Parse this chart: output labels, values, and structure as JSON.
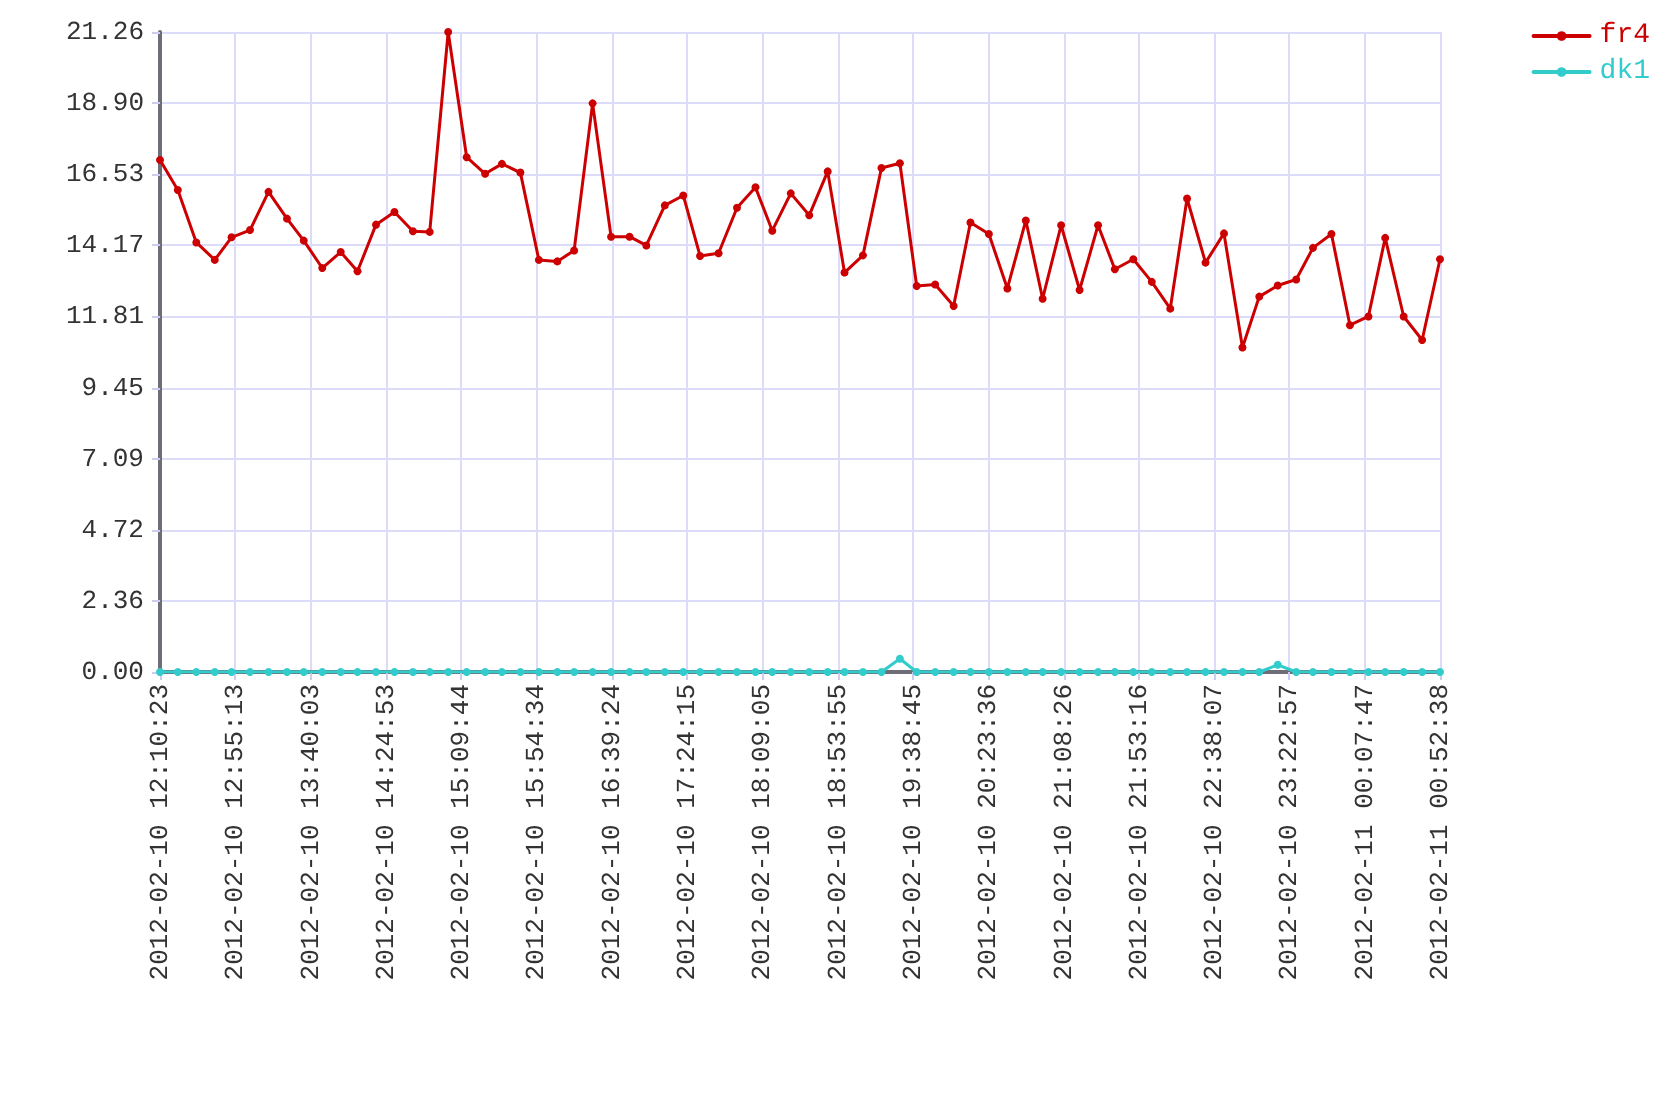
{
  "chart_data": {
    "type": "line",
    "x": [
      "2012-02-10T12:10:23",
      "2012-02-10T12:21",
      "2012-02-10T12:32",
      "2012-02-10T12:43",
      "2012-02-10T12:53",
      "2012-02-10T13:04",
      "2012-02-10T13:15",
      "2012-02-10T13:26",
      "2012-02-10T13:36",
      "2012-02-10T13:47",
      "2012-02-10T13:58",
      "2012-02-10T14:08",
      "2012-02-10T14:19",
      "2012-02-10T14:30",
      "2012-02-10T14:41",
      "2012-02-10T14:51",
      "2012-02-10T15:02",
      "2012-02-10T15:13",
      "2012-02-10T15:24",
      "2012-02-10T15:34",
      "2012-02-10T15:45",
      "2012-02-10T15:56",
      "2012-02-10T16:07",
      "2012-02-10T16:17",
      "2012-02-10T16:28",
      "2012-02-10T16:39",
      "2012-02-10T16:50",
      "2012-02-10T17:00",
      "2012-02-10T17:11",
      "2012-02-10T17:22",
      "2012-02-10T17:32",
      "2012-02-10T17:43",
      "2012-02-10T17:54",
      "2012-02-10T18:05",
      "2012-02-10T18:15",
      "2012-02-10T18:26",
      "2012-02-10T18:37",
      "2012-02-10T18:48",
      "2012-02-10T18:58",
      "2012-02-10T19:09",
      "2012-02-10T19:20",
      "2012-02-10T19:31",
      "2012-02-10T19:41",
      "2012-02-10T19:52",
      "2012-02-10T20:03",
      "2012-02-10T20:13",
      "2012-02-10T20:24",
      "2012-02-10T20:35",
      "2012-02-10T20:46",
      "2012-02-10T20:56",
      "2012-02-10T21:07",
      "2012-02-10T21:18",
      "2012-02-10T21:29",
      "2012-02-10T21:39",
      "2012-02-10T21:50",
      "2012-02-10T22:01",
      "2012-02-10T22:12",
      "2012-02-10T22:22",
      "2012-02-10T22:33",
      "2012-02-10T22:44",
      "2012-02-10T22:55",
      "2012-02-10T23:05",
      "2012-02-10T23:16",
      "2012-02-10T23:27",
      "2012-02-10T23:37",
      "2012-02-10T23:48",
      "2012-02-10T23:59",
      "2012-02-11T00:10",
      "2012-02-11T00:20",
      "2012-02-11T00:31",
      "2012-02-11T00:42",
      "2012-02-11T00:52:38"
    ],
    "series": [
      {
        "name": "fr4",
        "color": "#cc0000",
        "values": [
          17.01,
          16.01,
          14.27,
          13.69,
          14.44,
          14.68,
          15.95,
          15.06,
          14.33,
          13.42,
          13.95,
          13.31,
          14.86,
          15.28,
          14.64,
          14.62,
          21.26,
          17.1,
          16.55,
          16.88,
          16.59,
          13.69,
          13.64,
          14.0,
          18.89,
          14.46,
          14.46,
          14.17,
          15.5,
          15.83,
          13.82,
          13.91,
          15.42,
          16.1,
          14.66,
          15.9,
          15.17,
          16.63,
          13.27,
          13.84,
          16.74,
          16.9,
          12.82,
          12.87,
          12.16,
          14.93,
          14.55,
          12.74,
          15.0,
          12.4,
          14.84,
          12.69,
          14.84,
          13.38,
          13.71,
          12.96,
          12.07,
          15.73,
          13.6,
          14.57,
          10.78,
          12.47,
          12.84,
          13.04,
          14.09,
          14.55,
          11.52,
          11.81,
          14.42,
          11.81,
          11.03,
          13.71
        ]
      },
      {
        "name": "dk1",
        "color": "#33cccc",
        "values": [
          0,
          0,
          0,
          0,
          0,
          0,
          0,
          0,
          0,
          0,
          0,
          0,
          0,
          0,
          0,
          0,
          0,
          0,
          0,
          0,
          0,
          0,
          0,
          0,
          0,
          0,
          0,
          0,
          0,
          0,
          0,
          0,
          0,
          0,
          0,
          0,
          0,
          0,
          0,
          0,
          0,
          0.44,
          0,
          0,
          0,
          0,
          0,
          0,
          0,
          0,
          0,
          0,
          0,
          0,
          0,
          0,
          0,
          0,
          0,
          0,
          0,
          0,
          0.24,
          0,
          0,
          0,
          0,
          0,
          0,
          0,
          0,
          0
        ]
      }
    ],
    "xlim": [
      "2012-02-10T12:10:23",
      "2012-02-11T00:52:38"
    ],
    "xticks": [
      {
        "value": "2012-02-10T12:10:23",
        "label": "2012-02-10 12:10:23"
      },
      {
        "value": "2012-02-10T12:55:13",
        "label": "2012-02-10 12:55:13"
      },
      {
        "value": "2012-02-10T13:40:03",
        "label": "2012-02-10 13:40:03"
      },
      {
        "value": "2012-02-10T14:24:53",
        "label": "2012-02-10 14:24:53"
      },
      {
        "value": "2012-02-10T15:09:44",
        "label": "2012-02-10 15:09:44"
      },
      {
        "value": "2012-02-10T15:54:34",
        "label": "2012-02-10 15:54:34"
      },
      {
        "value": "2012-02-10T16:39:24",
        "label": "2012-02-10 16:39:24"
      },
      {
        "value": "2012-02-10T17:24:15",
        "label": "2012-02-10 17:24:15"
      },
      {
        "value": "2012-02-10T18:09:05",
        "label": "2012-02-10 18:09:05"
      },
      {
        "value": "2012-02-10T18:53:55",
        "label": "2012-02-10 18:53:55"
      },
      {
        "value": "2012-02-10T19:38:45",
        "label": "2012-02-10 19:38:45"
      },
      {
        "value": "2012-02-10T20:23:36",
        "label": "2012-02-10 20:23:36"
      },
      {
        "value": "2012-02-10T21:08:26",
        "label": "2012-02-10 21:08:26"
      },
      {
        "value": "2012-02-10T21:53:16",
        "label": "2012-02-10 21:53:16"
      },
      {
        "value": "2012-02-10T22:38:07",
        "label": "2012-02-10 22:38:07"
      },
      {
        "value": "2012-02-10T23:22:57",
        "label": "2012-02-10 23:22:57"
      },
      {
        "value": "2012-02-11T00:07:47",
        "label": "2012-02-11 00:07:47"
      },
      {
        "value": "2012-02-11T00:52:38",
        "label": "2012-02-11 00:52:38"
      }
    ],
    "ylim": [
      0,
      21.26
    ],
    "yticks": [
      {
        "value": 0,
        "label": "0.00"
      },
      2.36,
      4.72,
      7.09,
      9.45,
      11.81,
      14.17,
      16.53,
      {
        "value": 18.9,
        "label": "18.90"
      },
      21.26
    ],
    "grid": true,
    "legend": "top right",
    "marker": "circle",
    "line_style": "solid"
  }
}
